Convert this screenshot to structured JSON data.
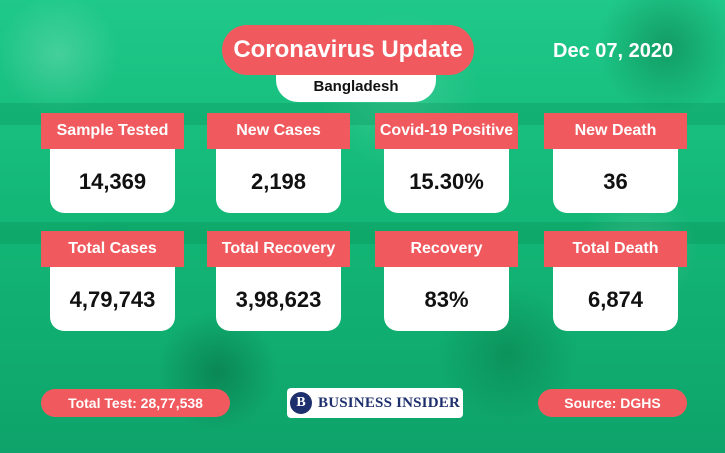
{
  "header": {
    "title": "Coronavirus Update",
    "subtitle": "Bangladesh",
    "date": "Dec 07, 2020"
  },
  "stats": {
    "row1": [
      {
        "label": "Sample Tested",
        "value": "14,369"
      },
      {
        "label": "New Cases",
        "value": "2,198"
      },
      {
        "label": "Covid-19 Positive",
        "value": "15.30%"
      },
      {
        "label": "New Death",
        "value": "36"
      }
    ],
    "row2": [
      {
        "label": "Total Cases",
        "value": "4,79,743"
      },
      {
        "label": "Total Recovery",
        "value": "3,98,623"
      },
      {
        "label": "Recovery",
        "value": "83%"
      },
      {
        "label": "Total Death",
        "value": "6,874"
      }
    ]
  },
  "footer": {
    "total_test": "Total Test:  28,77,538",
    "logo_mark": "B",
    "logo_text": "BUSINESS INSIDER",
    "source": "Source: DGHS"
  },
  "colors": {
    "accent": "#f05a5e",
    "background": "#13b877",
    "card": "#ffffff",
    "logo": "#1e2f6e"
  }
}
